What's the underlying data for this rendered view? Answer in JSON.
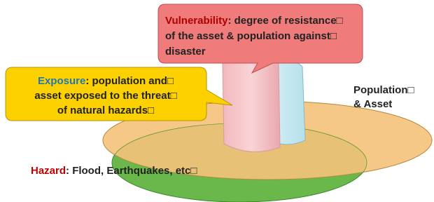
{
  "vulnerability": {
    "term": "Vulnerability",
    "lines": [
      ": degree of resistance□",
      "of the asset & population against□",
      "disaster"
    ]
  },
  "exposure": {
    "term": "Exposure",
    "lines": [
      ": population and□",
      "asset exposed to the threat□",
      "of natural hazards□"
    ]
  },
  "population": {
    "lines": [
      "Population□",
      "& Asset"
    ]
  },
  "hazard": {
    "term": "Hazard",
    "text": ": Flood, Earthquakes, etc□"
  }
}
